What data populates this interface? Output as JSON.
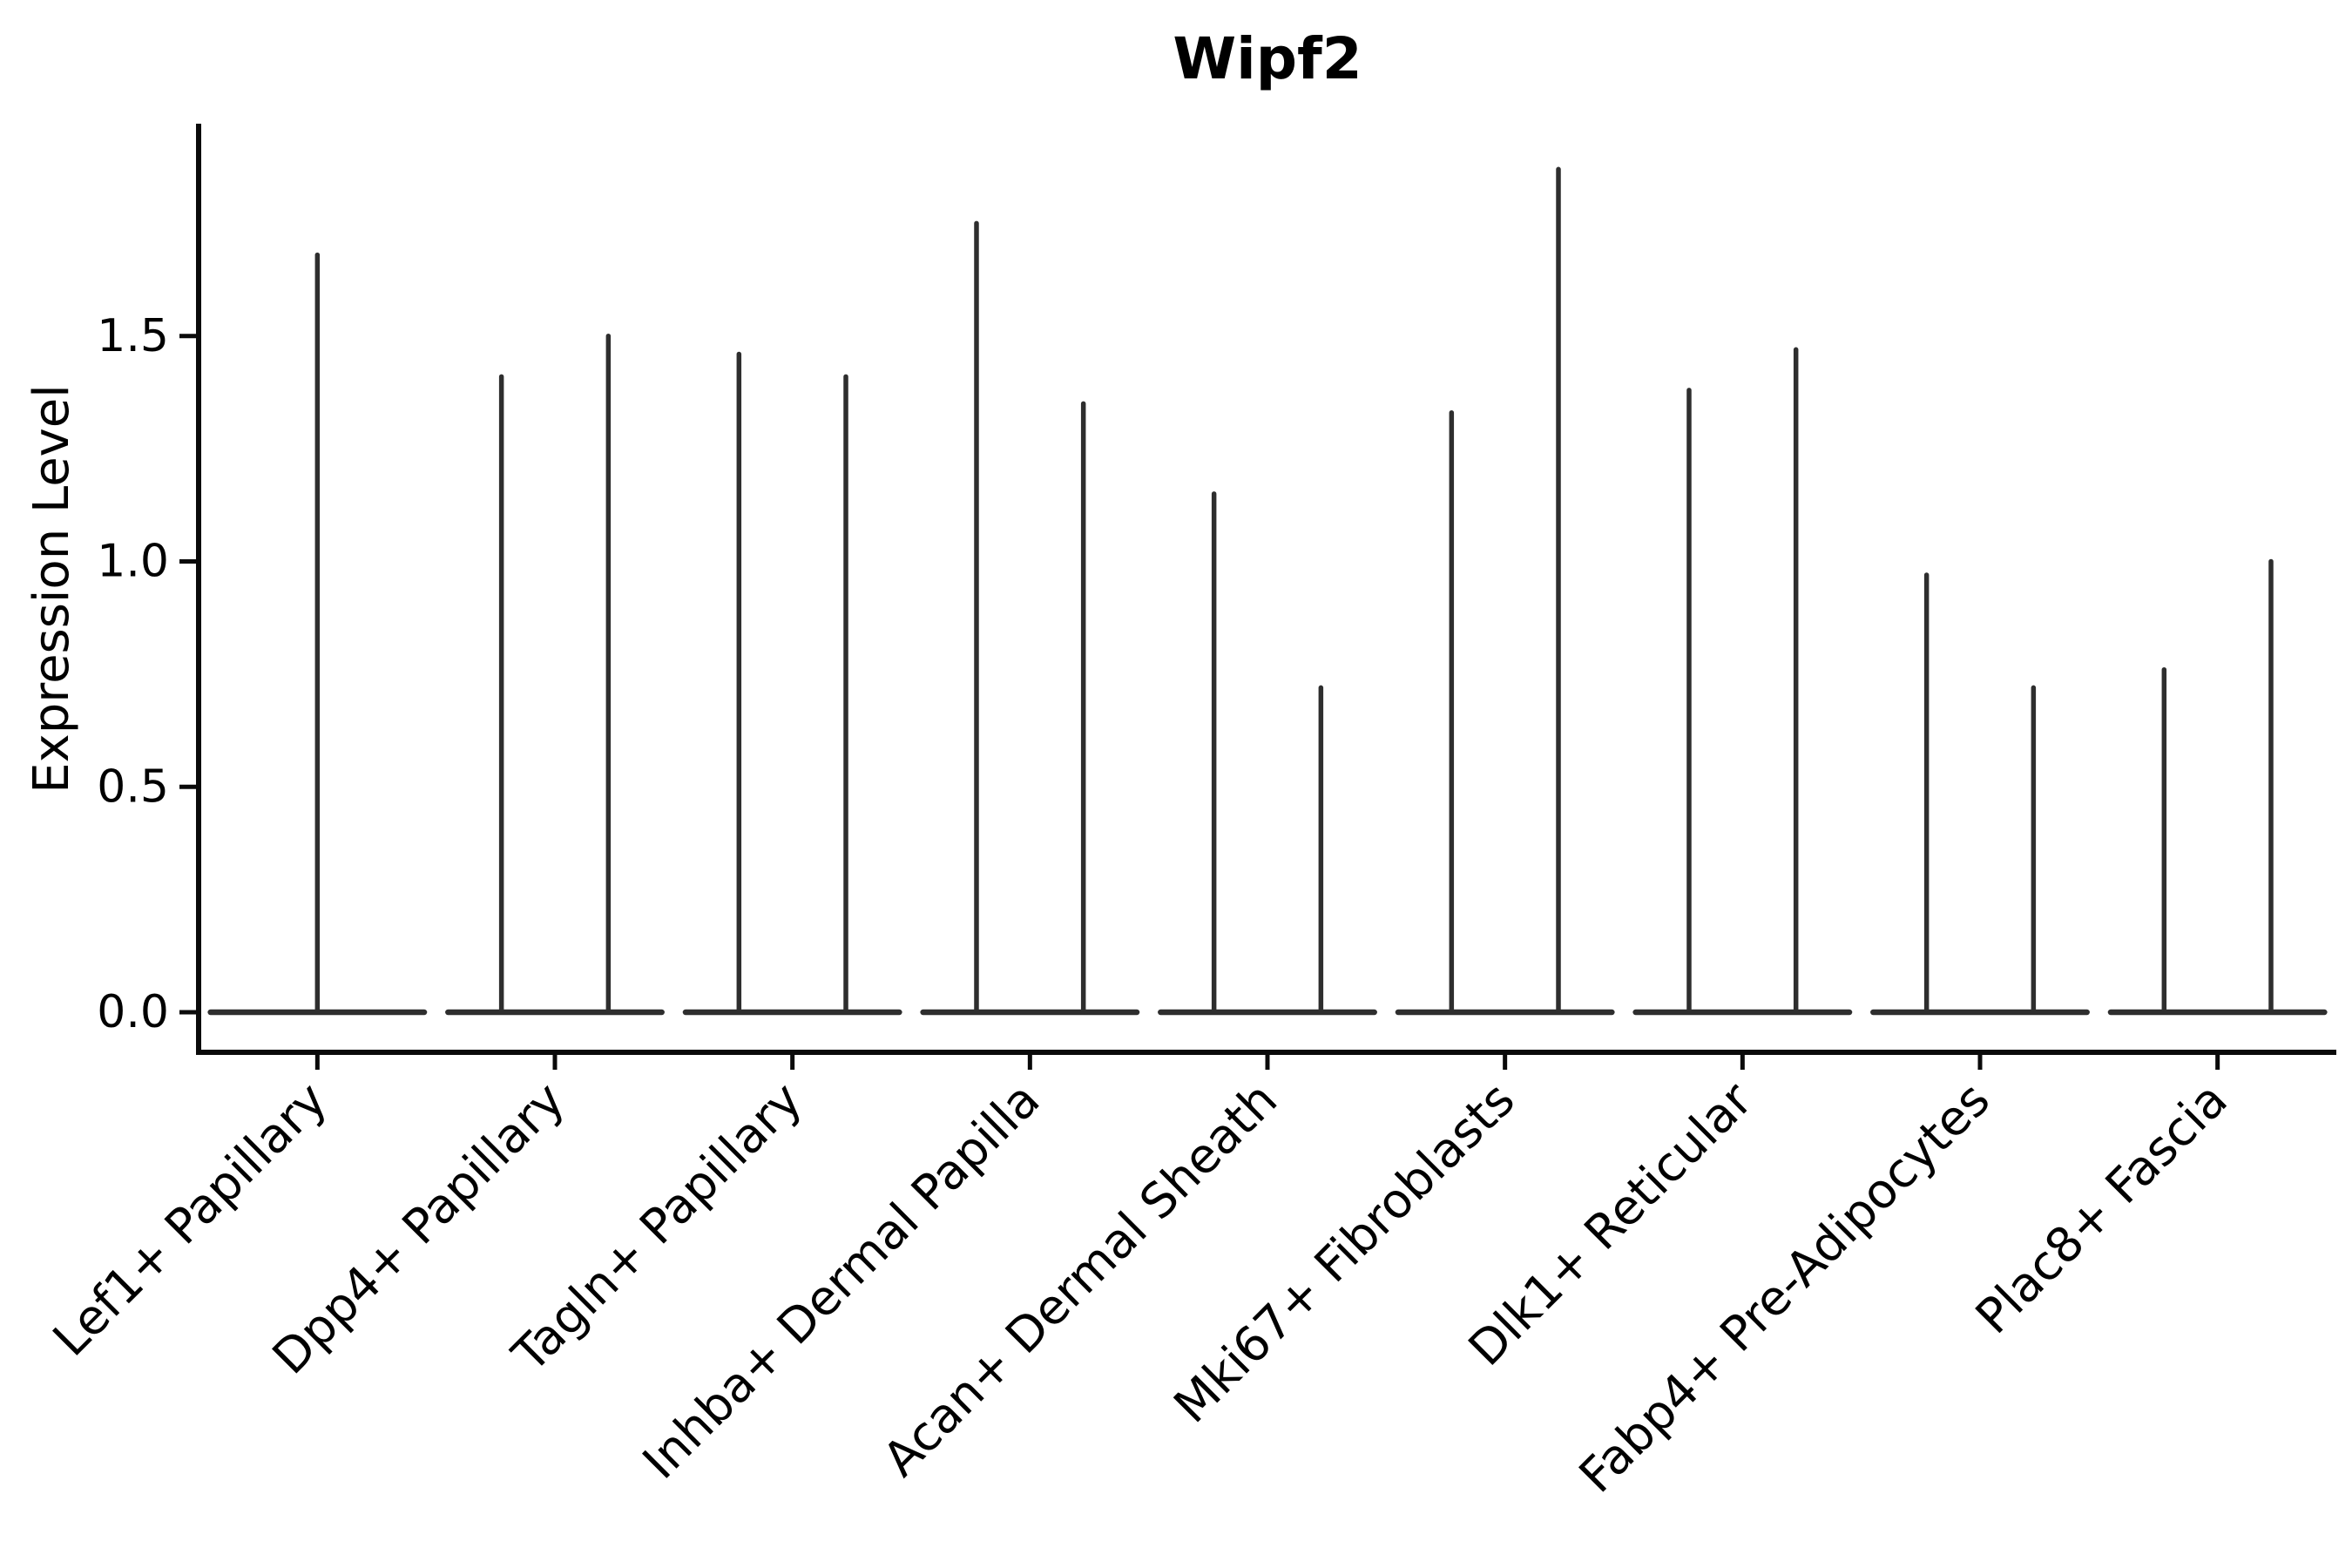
{
  "page": {
    "background": "#ffffff"
  },
  "chart_data": {
    "type": "violin",
    "title": "Wipf2",
    "ylabel": "Expression Level",
    "xlabel": "",
    "yticks": [
      0.0,
      0.5,
      1.0,
      1.5
    ],
    "ylim": [
      -0.09,
      1.97
    ],
    "grid": false,
    "legend": "none",
    "categories": [
      "Lef1+ Papillary",
      "Dpp4+ Papillary",
      "Tagln+ Papillary",
      "Inhba+ Dermal Papilla",
      "Acan+ Dermal Sheath",
      "Mki67+ Fibroblasts",
      "Dlk1+ Reticular",
      "Fabp4+ Pre-Adipocytes",
      "Plac8+ Fascia"
    ],
    "groups": [
      {
        "category": "Lef1+ Papillary",
        "violin_max": [
          1.68
        ]
      },
      {
        "category": "Dpp4+ Papillary",
        "violin_max": [
          1.41,
          1.5
        ]
      },
      {
        "category": "Tagln+ Papillary",
        "violin_max": [
          1.46,
          1.41
        ]
      },
      {
        "category": "Inhba+ Dermal Papilla",
        "violin_max": [
          1.75,
          1.35
        ]
      },
      {
        "category": "Acan+ Dermal Sheath",
        "violin_max": [
          1.15,
          0.72
        ]
      },
      {
        "category": "Mki67+ Fibroblasts",
        "violin_max": [
          1.33,
          1.87
        ]
      },
      {
        "category": "Dlk1+ Reticular",
        "violin_max": [
          1.38,
          1.47
        ]
      },
      {
        "category": "Fabp4+ Pre-Adipocytes",
        "violin_max": [
          0.97,
          0.72
        ]
      },
      {
        "category": "Plac8+ Fascia",
        "violin_max": [
          0.76,
          1.0
        ]
      }
    ],
    "shape_note": "each distribution is concentrated at 0 (wide flat base at y=0) with a single thin spike rising to its max value",
    "colors": {
      "violin_stroke": "#2e2e2e",
      "axis": "#0a0a0a",
      "text": "#000000",
      "background": "#ffffff"
    }
  }
}
